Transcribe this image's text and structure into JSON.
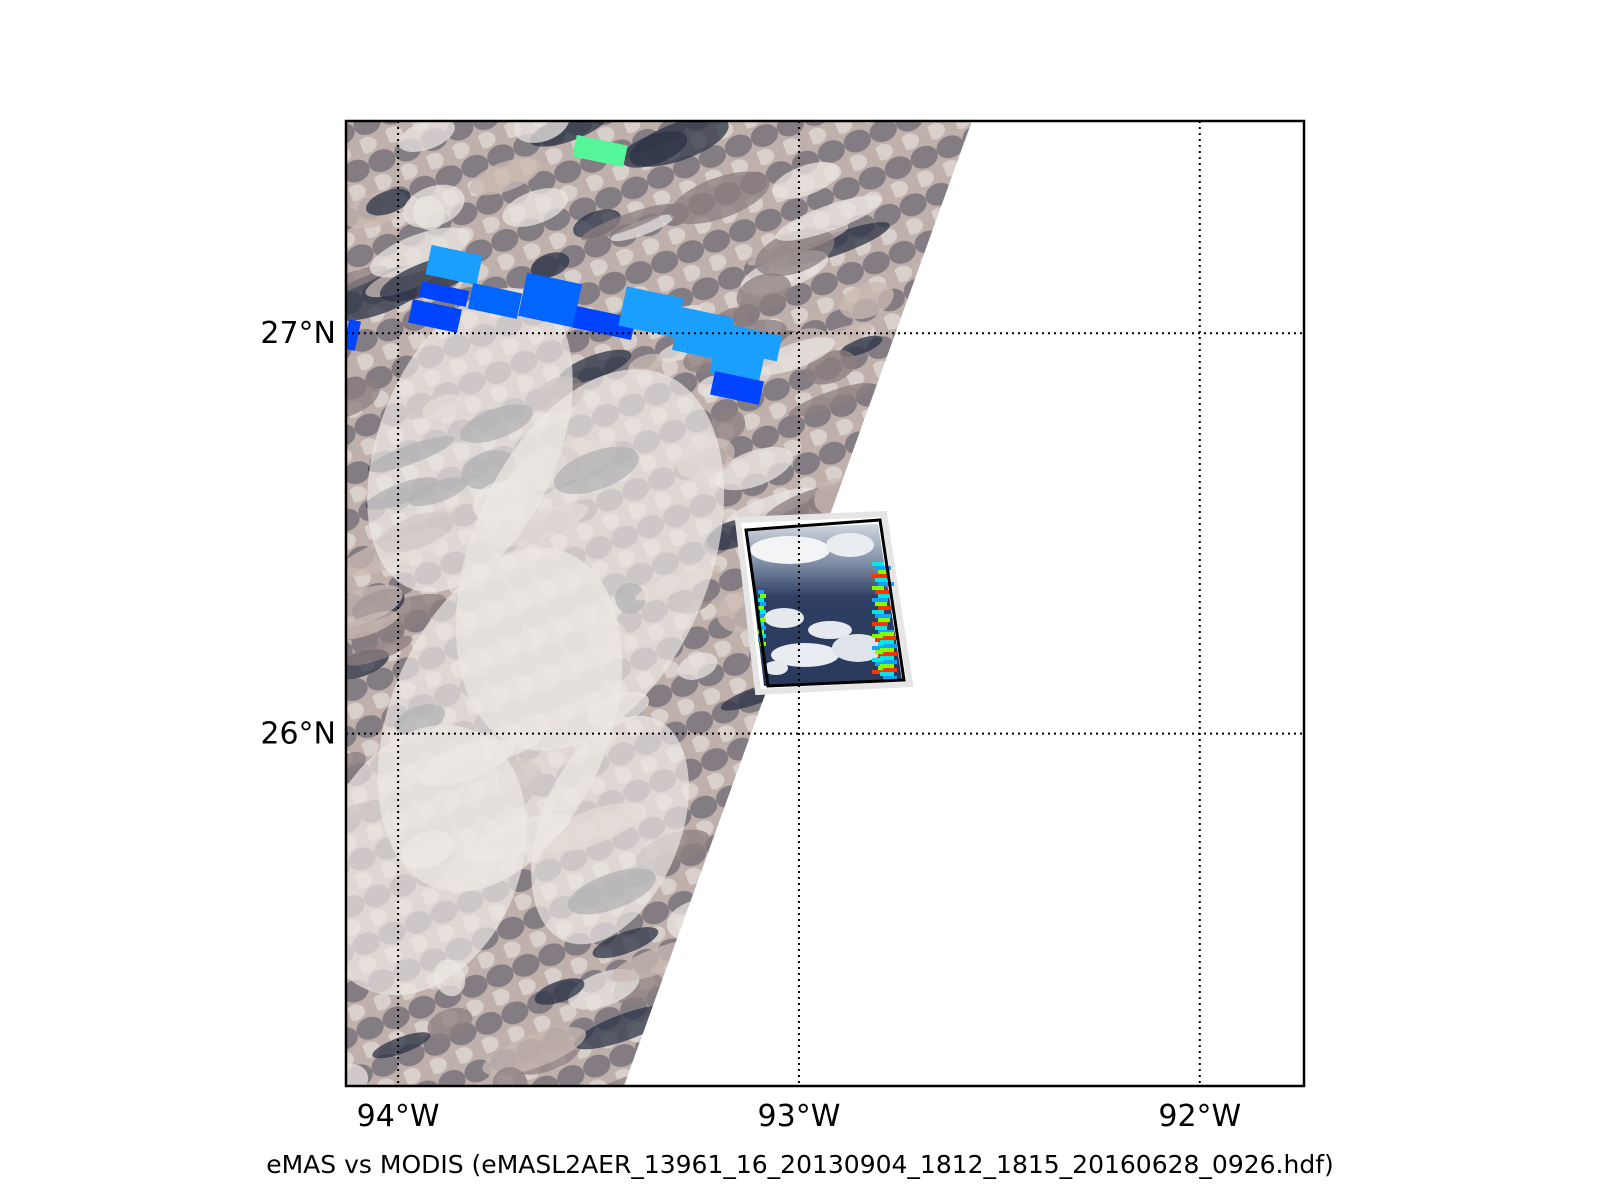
{
  "caption": "eMAS vs MODIS (eMASL2AER_13961_16_20130904_1812_1815_20160628_0926.hdf)",
  "map": {
    "lon_range": [
      -94.13,
      -91.74
    ],
    "lat_range": [
      25.12,
      27.53
    ],
    "gridlines": {
      "style": "dotted",
      "meridians": [
        -94,
        -93,
        -92
      ],
      "parallels": [
        26,
        27
      ]
    },
    "lon_labels": [
      {
        "value": -94,
        "text": "94°W"
      },
      {
        "value": -93,
        "text": "93°W"
      },
      {
        "value": -92,
        "text": "92°W"
      }
    ],
    "lat_labels": [
      {
        "value": 27,
        "text": "27°N"
      },
      {
        "value": 26,
        "text": "26°N"
      }
    ],
    "layers": [
      {
        "name": "MODIS true-color swath",
        "colors": [
          "#2b3346",
          "#8c7f80",
          "#c9b9b3",
          "#e8e4e0"
        ]
      },
      {
        "name": "MODIS aerosol retrieval cells",
        "colors": [
          "#0044ff",
          "#0066ff",
          "#1a9fff",
          "#55f59a"
        ]
      },
      {
        "name": "eMAS true-color granule",
        "colors": [
          "#2d3d62",
          "#e6eaef"
        ]
      },
      {
        "name": "eMAS aerosol retrieval edges",
        "colors": [
          "#00e5e5",
          "#1a9fff",
          "#7fff00",
          "#ff3300"
        ]
      }
    ],
    "emas_outline_color": "#000000"
  }
}
